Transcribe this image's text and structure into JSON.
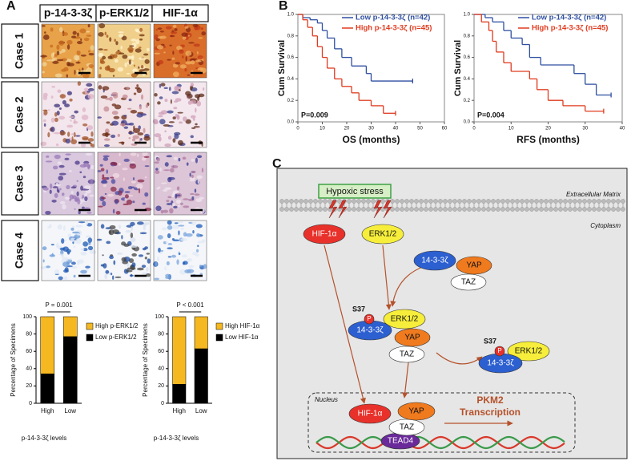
{
  "panel_labels": [
    "A",
    "B",
    "C"
  ],
  "histology": {
    "columns": [
      "p-14-3-3ζ",
      "p-ERK1/2",
      "HIF-1α"
    ],
    "rows": [
      "Case 1",
      "Case 2",
      "Case 3",
      "Case 4"
    ]
  },
  "chart_data": [
    {
      "type": "bar",
      "stacked": true,
      "categories": [
        "High",
        "Low"
      ],
      "xlabel": "p-14-3-3ζ levels",
      "ylabel": "Percentage of Specimens",
      "annotation": "P = 0.001",
      "legend": "right",
      "ylim": [
        0,
        100
      ],
      "yticks": [
        0,
        20,
        40,
        60,
        80,
        100
      ],
      "series": [
        {
          "name": "Low p-ERK1/2",
          "color": "#000000",
          "values": [
            34,
            77
          ]
        },
        {
          "name": "High p-ERK1/2",
          "color": "#f5b821",
          "values": [
            66,
            23
          ]
        }
      ]
    },
    {
      "type": "bar",
      "stacked": true,
      "categories": [
        "High",
        "Low"
      ],
      "xlabel": "p-14-3-3ζ levels",
      "ylabel": "Percentage of Specimens",
      "annotation": "P < 0.001",
      "legend": "right",
      "ylim": [
        0,
        100
      ],
      "yticks": [
        0,
        20,
        40,
        60,
        80,
        100
      ],
      "series": [
        {
          "name": "Low HIF-1α",
          "color": "#000000",
          "values": [
            22,
            63
          ]
        },
        {
          "name": "High HIF-1α",
          "color": "#f5b821",
          "values": [
            78,
            37
          ]
        }
      ]
    },
    {
      "type": "line",
      "step": true,
      "xlabel": "OS (months)",
      "ylabel": "Cum Survival",
      "annotation": "P=0.009",
      "legend": "top-right",
      "xlim": [
        0,
        60
      ],
      "xticks": [
        0,
        10,
        20,
        30,
        40,
        50,
        60
      ],
      "ylim": [
        0,
        1
      ],
      "yticks": [
        {
          "value": 0,
          "label": "0.0"
        },
        0.2,
        0.4,
        0.6,
        0.8,
        {
          "value": 1,
          "label": "1.0"
        }
      ],
      "series": [
        {
          "name": "Low p-14-3-3ζ (n=42)",
          "color": "#2e4fa0",
          "x": [
            0,
            2,
            5,
            8,
            10,
            12,
            15,
            18,
            22,
            28,
            30,
            47
          ],
          "values": [
            1.0,
            0.97,
            0.95,
            0.92,
            0.85,
            0.78,
            0.68,
            0.6,
            0.52,
            0.45,
            0.38,
            0.38
          ]
        },
        {
          "name": "High p-14-3-3ζ (n=45)",
          "color": "#e03a1e",
          "x": [
            0,
            2,
            4,
            6,
            8,
            10,
            12,
            15,
            18,
            22,
            25,
            30,
            35,
            40
          ],
          "values": [
            1.0,
            0.95,
            0.88,
            0.8,
            0.7,
            0.6,
            0.5,
            0.4,
            0.33,
            0.27,
            0.2,
            0.15,
            0.08,
            0.08
          ]
        }
      ]
    },
    {
      "type": "line",
      "step": true,
      "xlabel": "RFS (months)",
      "ylabel": "Cum Survival",
      "annotation": "P=0.004",
      "legend": "top-right",
      "xlim": [
        0,
        40
      ],
      "xticks": [
        0,
        10,
        20,
        30,
        40
      ],
      "ylim": [
        0,
        1
      ],
      "yticks": [
        {
          "value": 0,
          "label": "0.0"
        },
        0.2,
        0.4,
        0.6,
        0.8,
        {
          "value": 1,
          "label": "1.0"
        }
      ],
      "series": [
        {
          "name": "Low p-14-3-3ζ (n=42)",
          "color": "#2e4fa0",
          "x": [
            0,
            3,
            5,
            8,
            10,
            13,
            15,
            18,
            27,
            30,
            33,
            37
          ],
          "values": [
            1.0,
            0.97,
            0.93,
            0.85,
            0.78,
            0.72,
            0.6,
            0.53,
            0.45,
            0.35,
            0.25,
            0.25
          ]
        },
        {
          "name": "High p-14-3-3ζ (n=45)",
          "color": "#e03a1e",
          "x": [
            0,
            2,
            4,
            5,
            6,
            8,
            10,
            15,
            17,
            20,
            24,
            30,
            35
          ],
          "values": [
            1.0,
            0.93,
            0.85,
            0.75,
            0.65,
            0.55,
            0.47,
            0.4,
            0.3,
            0.2,
            0.15,
            0.1,
            0.1
          ]
        }
      ]
    }
  ],
  "diagram": {
    "hypoxic_stress": "Hypoxic stress",
    "extracellular_matrix": "Extracellular Matrix",
    "cytoplasm": "Cytoplasm",
    "nucleus": "Nucleus",
    "nodes": [
      "HIF-1α",
      "ERK1/2",
      "14-3-3ζ",
      "YAP",
      "TAZ",
      "ERK1/2",
      "14-3-3ζ",
      "YAP",
      "TAZ",
      "ERK1/2",
      "14-3-3ζ",
      "HIF-1α",
      "YAP",
      "TAZ",
      "TEAD4"
    ],
    "phospho": [
      {
        "site": "S37",
        "mark": "P"
      },
      {
        "site": "S37",
        "mark": "P"
      }
    ],
    "transcription": [
      "PKM2",
      "Transcription"
    ]
  }
}
